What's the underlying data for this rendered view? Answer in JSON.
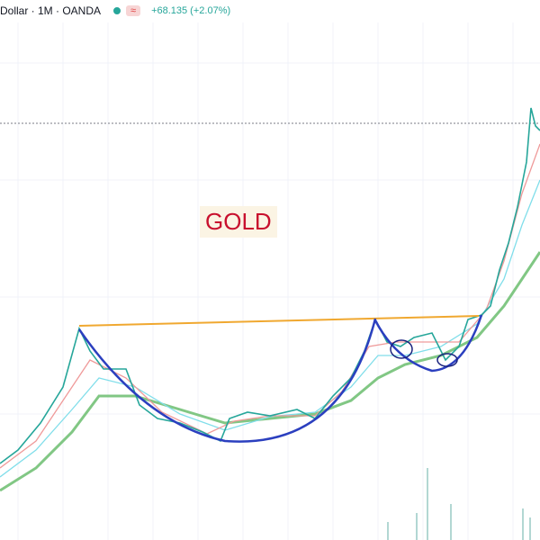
{
  "header": {
    "symbol": "Dollar · 1M · OANDA",
    "badge": "≈",
    "change": "+68.135 (+2.07%)"
  },
  "annotation": "GOLD"
}
